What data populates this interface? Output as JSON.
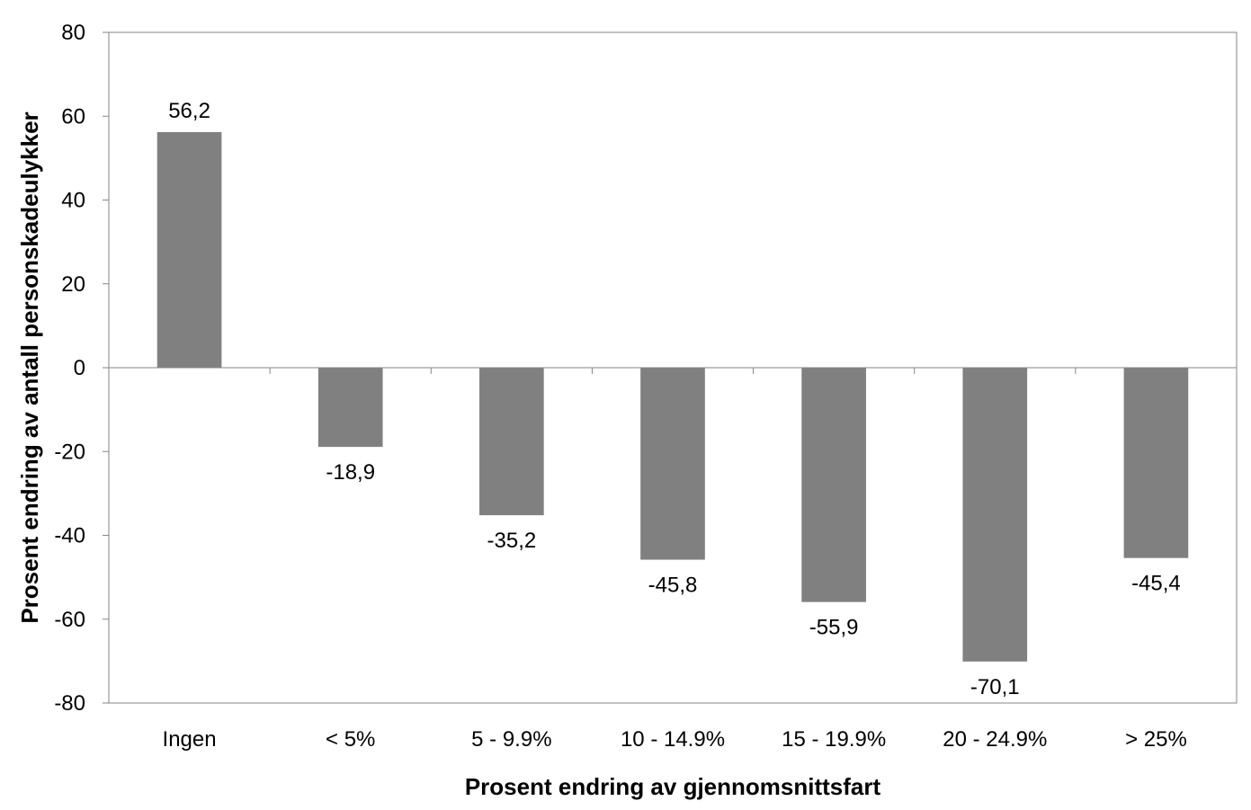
{
  "chart_data": {
    "type": "bar",
    "title": "",
    "xlabel": "Prosent endring av gjennomsnittsfart",
    "ylabel": "Prosent endring av antall personskadeulykker",
    "categories": [
      "Ingen",
      "< 5%",
      "5 - 9.9%",
      "10 - 14.9%",
      "15 - 19.9%",
      "20 - 24.9%",
      "> 25%"
    ],
    "values": [
      56.2,
      -18.9,
      -35.2,
      -45.8,
      -55.9,
      -70.1,
      -45.4
    ],
    "data_labels": [
      "56,2",
      "-18,9",
      "-35,2",
      "-45,8",
      "-55,9",
      "-70,1",
      "-45,4"
    ],
    "ylim": [
      -80,
      80
    ],
    "yticks": [
      80,
      60,
      40,
      20,
      0,
      -20,
      -40,
      -60,
      -80
    ],
    "grid": false,
    "legend": "none",
    "colors": {
      "bar": "#808080",
      "axis": "#868686",
      "text": "#000000"
    }
  }
}
